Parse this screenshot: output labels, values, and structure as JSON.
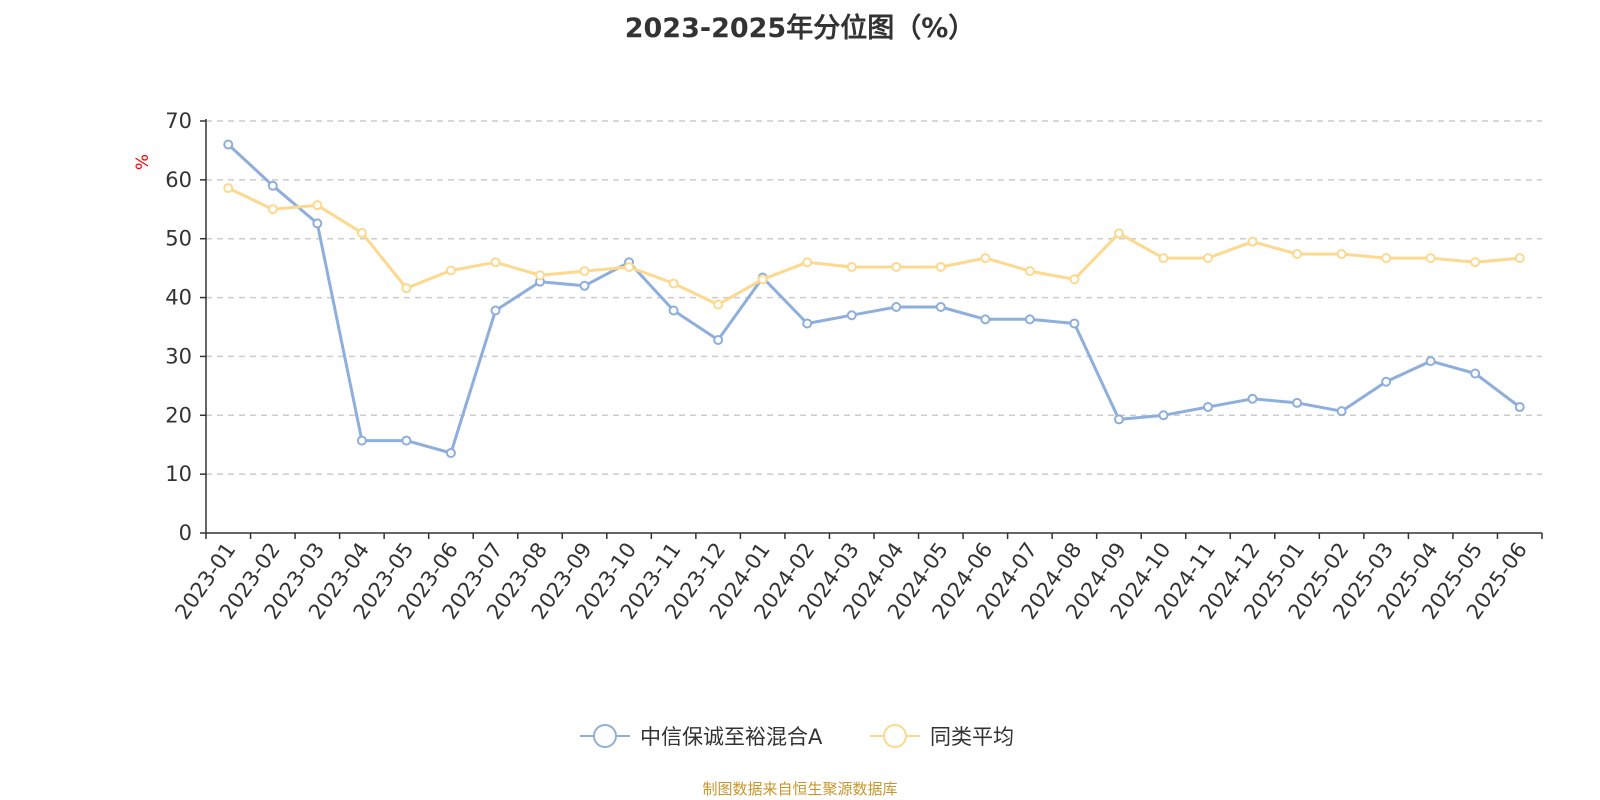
{
  "title": "2023-2025年分位图（%）",
  "source": "制图数据来自恒生聚源数据库",
  "chart_data": {
    "type": "line",
    "title": "2023-2025年分位图（%）",
    "ylabel": "%",
    "ylim": [
      0,
      70
    ],
    "yticks": [
      0,
      10,
      20,
      30,
      40,
      50,
      60,
      70
    ],
    "grid": true,
    "legend_position": "bottom",
    "categories": [
      "2023-01",
      "2023-02",
      "2023-03",
      "2023-04",
      "2023-05",
      "2023-06",
      "2023-07",
      "2023-08",
      "2023-09",
      "2023-10",
      "2023-11",
      "2023-12",
      "2024-01",
      "2024-02",
      "2024-03",
      "2024-04",
      "2024-05",
      "2024-06",
      "2024-07",
      "2024-08",
      "2024-09",
      "2024-10",
      "2024-11",
      "2024-12",
      "2025-01",
      "2025-02",
      "2025-03",
      "2025-04",
      "2025-05",
      "2025-06"
    ],
    "series": [
      {
        "name": "中信保诚至裕混合A",
        "color": "#8eaedb",
        "values": [
          66.0,
          59.0,
          52.6,
          15.7,
          15.7,
          13.6,
          37.8,
          42.7,
          42.0,
          46.0,
          37.8,
          32.8,
          43.4,
          35.6,
          37.0,
          38.4,
          38.4,
          36.3,
          36.3,
          35.6,
          19.3,
          20.0,
          21.4,
          22.8,
          22.1,
          20.7,
          25.7,
          29.2,
          27.1,
          21.4
        ]
      },
      {
        "name": "同类平均",
        "color": "#fcd98f",
        "values": [
          58.6,
          55.0,
          55.7,
          51.0,
          41.6,
          44.6,
          46.0,
          43.8,
          44.5,
          45.2,
          42.4,
          38.8,
          43.1,
          46.0,
          45.2,
          45.2,
          45.2,
          46.7,
          44.5,
          43.1,
          50.9,
          46.7,
          46.7,
          49.5,
          47.4,
          47.4,
          46.7,
          46.7,
          46.0,
          46.7
        ]
      }
    ]
  }
}
